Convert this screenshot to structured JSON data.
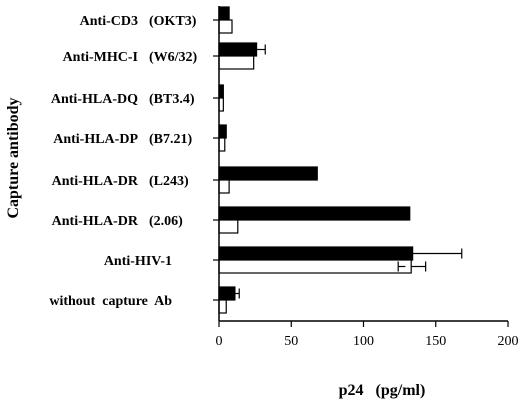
{
  "chart_data": {
    "type": "bar",
    "orientation": "horizontal",
    "xlabel": "p24   (pg/ml)",
    "ylabel": "Capture antibody",
    "xlim": [
      0,
      200
    ],
    "xticks": [
      0,
      50,
      100,
      150,
      200
    ],
    "categories": [
      {
        "name": "Anti-CD3",
        "clone": "(OKT3)"
      },
      {
        "name": "Anti-MHC-I",
        "clone": "(W6/32)"
      },
      {
        "name": "Anti-HLA-DQ",
        "clone": "(BT3.4)"
      },
      {
        "name": "Anti-HLA-DP",
        "clone": "(B7.21)"
      },
      {
        "name": "Anti-HLA-DR",
        "clone": "(L243)"
      },
      {
        "name": "Anti-HLA-DR",
        "clone": "(2.06)"
      },
      {
        "name": "Anti-HIV-1",
        "clone": ""
      },
      {
        "name": "without  capture  Ab",
        "clone": ""
      }
    ],
    "series": [
      {
        "fill": "#000000",
        "values": [
          7,
          26,
          3,
          5,
          68,
          132,
          134,
          11
        ],
        "errors": [
          0,
          6,
          0,
          0,
          0,
          0,
          34,
          3
        ]
      },
      {
        "fill": "#ffffff",
        "values": [
          9,
          24,
          3,
          4,
          7,
          13,
          133,
          5
        ],
        "errors": [
          0,
          0,
          0,
          0,
          0,
          0,
          10,
          0
        ]
      }
    ],
    "extra_error_marks": [
      {
        "category": 6,
        "series": 1,
        "value": 124,
        "side": "minus",
        "error": 5
      }
    ]
  }
}
